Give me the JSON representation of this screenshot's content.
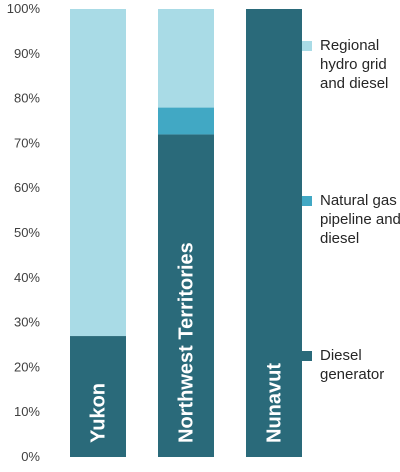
{
  "chart_data": {
    "type": "bar",
    "stacked": true,
    "orientation": "vertical",
    "categories": [
      "Yukon",
      "Northwest Territories",
      "Nunavut"
    ],
    "series": [
      {
        "name": "Diesel generator",
        "values": [
          27,
          72,
          100
        ],
        "color": "#2a6a7a"
      },
      {
        "name": "Natural gas pipeline and diesel",
        "values": [
          0,
          6,
          0
        ],
        "color": "#41a8c4"
      },
      {
        "name": "Regional hydro grid and diesel",
        "values": [
          73,
          22,
          0
        ],
        "color": "#a9dbe6"
      }
    ],
    "ylim": [
      0,
      100
    ],
    "yticks": [
      "0%",
      "10%",
      "20%",
      "30%",
      "40%",
      "50%",
      "60%",
      "70%",
      "80%",
      "90%",
      "100%"
    ],
    "legend": {
      "position": "right",
      "entries": [
        {
          "label": "Regional hydro grid and diesel",
          "color": "#a9dbe6"
        },
        {
          "label": "Natural gas pipeline and diesel",
          "color": "#41a8c4"
        },
        {
          "label": "Diesel generator",
          "color": "#2a6a7a"
        }
      ]
    },
    "grid": false
  }
}
